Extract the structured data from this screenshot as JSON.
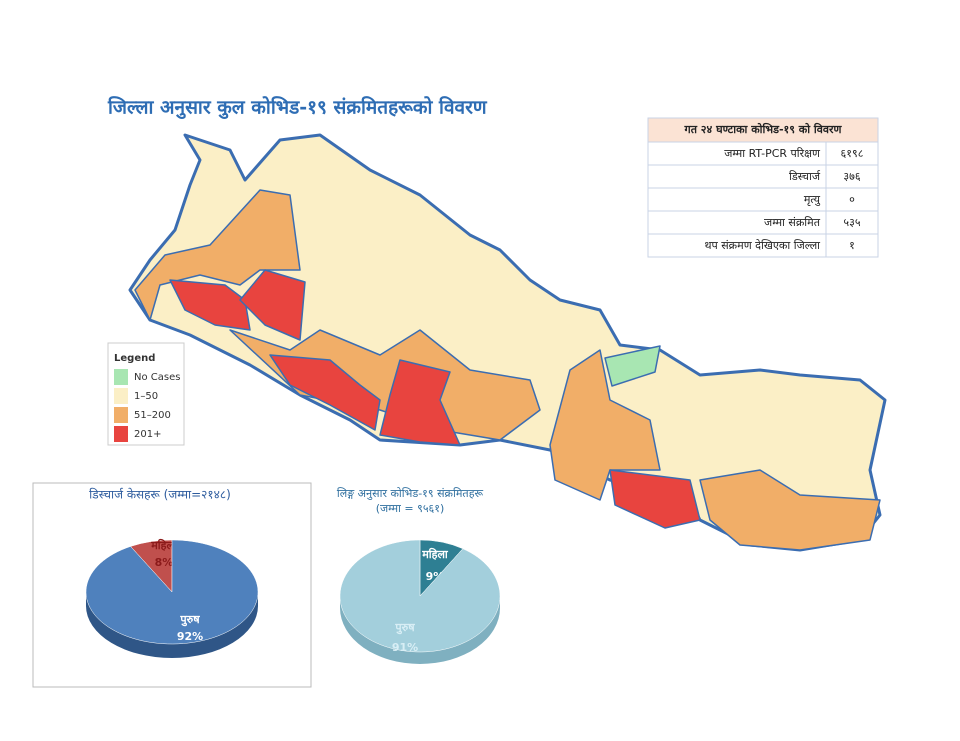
{
  "title": "जिल्ला अनुसार कुल कोभिड-१९ संक्रमितहरूको विवरण",
  "legend": {
    "title": "Legend",
    "items": [
      {
        "label": "No Cases",
        "color": "#a8e6b2"
      },
      {
        "label": "1–50",
        "color": "#fbefc6"
      },
      {
        "label": "51–200",
        "color": "#f1ae68"
      },
      {
        "label": "201+",
        "color": "#e8443f"
      }
    ]
  },
  "table": {
    "header": "गत २४ घण्टाका कोभिड-१९ को विवरण",
    "rows": [
      [
        "जम्मा RT-PCR परिक्षण",
        "६१९८"
      ],
      [
        "डिस्चार्ज",
        "३७६"
      ],
      [
        "मृत्यु",
        "०"
      ],
      [
        "जम्मा संक्रमित",
        "५३५"
      ],
      [
        "थप संक्रमण देखिएका जिल्ला",
        "१"
      ]
    ]
  },
  "chart_data": [
    {
      "type": "pie",
      "title": "डिस्चार्ज केसहरू (जम्मा=२१४८)",
      "categories": [
        "महिला",
        "पुरुष"
      ],
      "values": [
        8,
        92
      ],
      "value_labels": [
        "8%",
        "92%"
      ],
      "colors": [
        "#c0504d",
        "#4f81bd"
      ]
    },
    {
      "type": "pie",
      "title": "लिङ्ग अनुसार कोभिड-१९ संक्रमितहरू (जम्मा = ९५६१)",
      "categories": [
        "महिला",
        "पुरुष"
      ],
      "values": [
        9,
        91
      ],
      "value_labels": [
        "9%",
        "91%"
      ],
      "colors": [
        "#2e7f93",
        "#a3cfdc"
      ]
    }
  ]
}
